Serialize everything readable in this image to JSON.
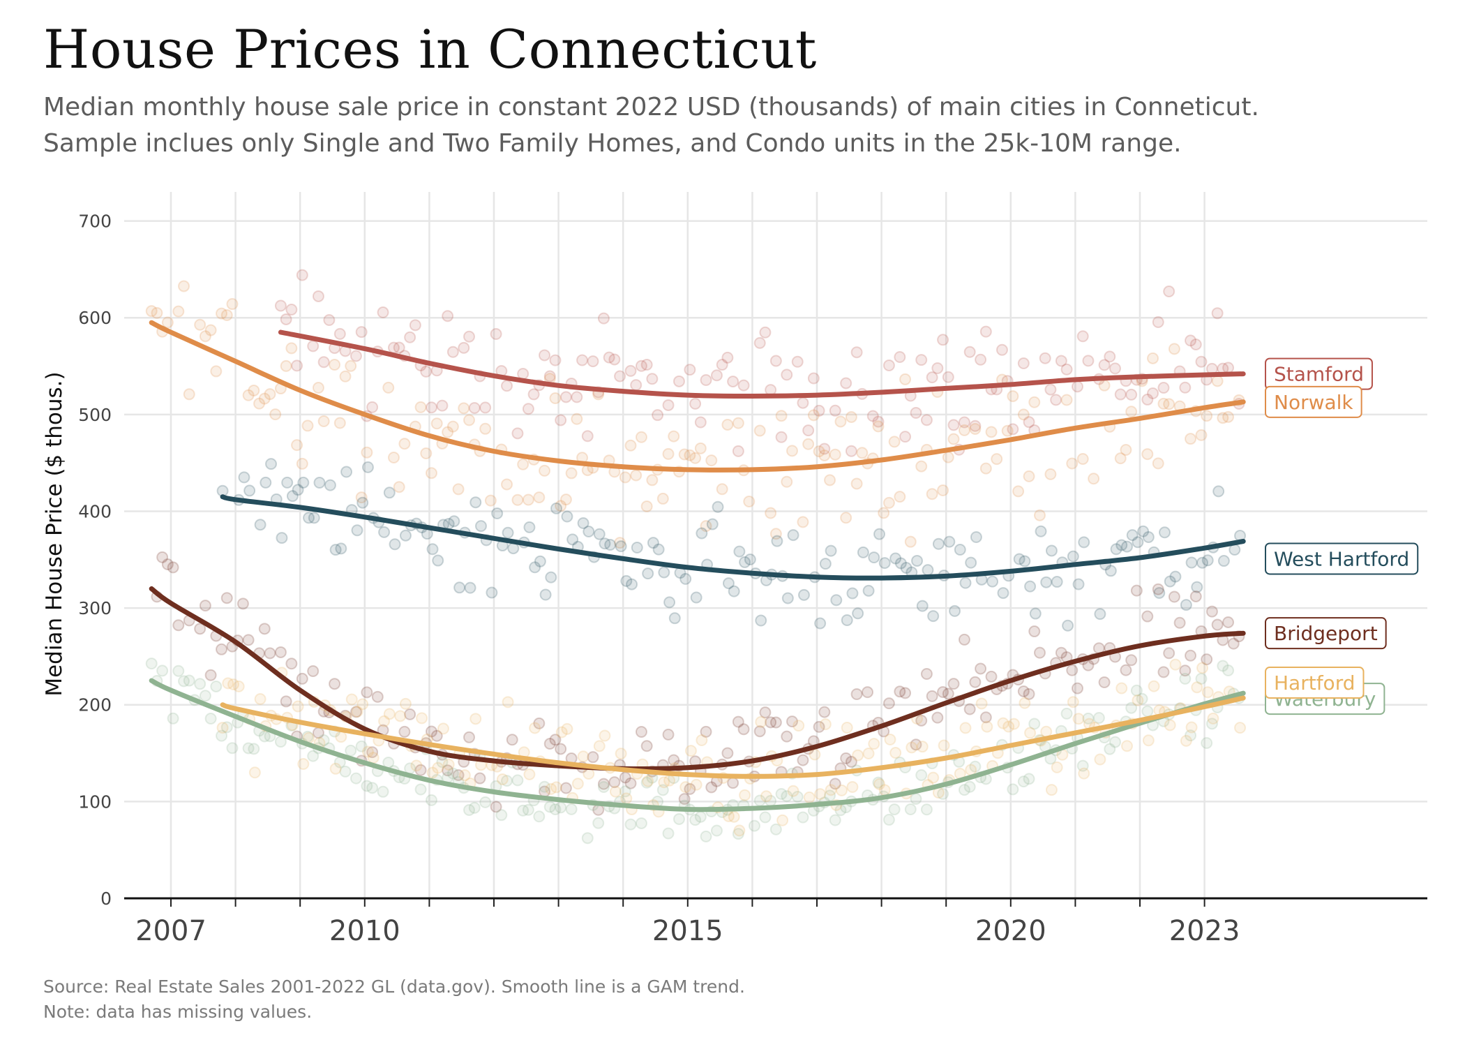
{
  "title": "House Prices in Connecticut",
  "subtitle_lines": [
    "Median monthly house sale price in constant 2022 USD (thousands) of main cities in Conneticut.",
    "Sample inclues only Single and Two Family Homes, and Condo units in the 25k-10M range."
  ],
  "footer_lines": [
    "Source: Real Estate Sales 2001-2022 GL (data.gov). Smooth line is a GAM trend.",
    "Note: data has missing values."
  ],
  "chart_data": {
    "type": "line",
    "title": "House Prices in Connecticut",
    "ylabel": "Median House Price ($ thous.)",
    "xlabel": "",
    "xlim": [
      2006.6,
      2026.8
    ],
    "ylim": [
      0,
      730
    ],
    "x_tick_labels": [
      2007,
      2010,
      2015,
      2020,
      2023
    ],
    "x_minor_ticks": [
      2007,
      2008,
      2009,
      2010,
      2011,
      2012,
      2013,
      2014,
      2015,
      2016,
      2017,
      2018,
      2019,
      2020,
      2021,
      2022,
      2023
    ],
    "y_ticks": [
      0,
      100,
      200,
      300,
      400,
      500,
      600,
      700
    ],
    "grid": true,
    "legend": "direct labels at line ends (right)",
    "scatter_note": "faint monthly median points around each trend line",
    "series": [
      {
        "name": "Stamford",
        "color": "#b5534b",
        "trend": [
          [
            2008.7,
            585
          ],
          [
            2010,
            568
          ],
          [
            2011,
            553
          ],
          [
            2012,
            540
          ],
          [
            2013,
            530
          ],
          [
            2014,
            524
          ],
          [
            2015,
            520
          ],
          [
            2016,
            519
          ],
          [
            2017,
            520
          ],
          [
            2018,
            523
          ],
          [
            2019,
            527
          ],
          [
            2020,
            531
          ],
          [
            2021,
            536
          ],
          [
            2022,
            539
          ],
          [
            2023,
            541
          ],
          [
            2023.6,
            542
          ]
        ],
        "scatter_spread": 55
      },
      {
        "name": "Norwalk",
        "color": "#df8c49",
        "trend": [
          [
            2006.7,
            595
          ],
          [
            2007,
            585
          ],
          [
            2008,
            555
          ],
          [
            2009,
            525
          ],
          [
            2010,
            500
          ],
          [
            2011,
            478
          ],
          [
            2012,
            462
          ],
          [
            2013,
            452
          ],
          [
            2014,
            446
          ],
          [
            2015,
            443
          ],
          [
            2016,
            443
          ],
          [
            2017,
            446
          ],
          [
            2018,
            453
          ],
          [
            2019,
            463
          ],
          [
            2020,
            474
          ],
          [
            2021,
            486
          ],
          [
            2022,
            496
          ],
          [
            2023,
            507
          ],
          [
            2023.6,
            513
          ]
        ],
        "scatter_spread": 60
      },
      {
        "name": "West Hartford",
        "color": "#244d5c",
        "trend": [
          [
            2007.8,
            415
          ],
          [
            2008,
            412
          ],
          [
            2009,
            404
          ],
          [
            2010,
            394
          ],
          [
            2011,
            383
          ],
          [
            2012,
            372
          ],
          [
            2013,
            361
          ],
          [
            2014,
            351
          ],
          [
            2015,
            342
          ],
          [
            2016,
            336
          ],
          [
            2017,
            332
          ],
          [
            2018,
            331
          ],
          [
            2019,
            333
          ],
          [
            2020,
            338
          ],
          [
            2021,
            345
          ],
          [
            2022,
            352
          ],
          [
            2023,
            362
          ],
          [
            2023.6,
            369
          ]
        ],
        "scatter_spread": 45
      },
      {
        "name": "Bridgeport",
        "color": "#6e2e1f",
        "trend": [
          [
            2006.7,
            320
          ],
          [
            2007,
            305
          ],
          [
            2008,
            265
          ],
          [
            2009,
            215
          ],
          [
            2010,
            175
          ],
          [
            2011,
            152
          ],
          [
            2012,
            142
          ],
          [
            2013,
            137
          ],
          [
            2014,
            134
          ],
          [
            2015,
            135
          ],
          [
            2016,
            142
          ],
          [
            2017,
            157
          ],
          [
            2018,
            178
          ],
          [
            2019,
            202
          ],
          [
            2020,
            225
          ],
          [
            2021,
            245
          ],
          [
            2022,
            261
          ],
          [
            2023,
            271
          ],
          [
            2023.6,
            274
          ]
        ],
        "scatter_spread": 40
      },
      {
        "name": "Waterbury",
        "color": "#8fb391",
        "trend": [
          [
            2006.7,
            225
          ],
          [
            2007,
            215
          ],
          [
            2008,
            188
          ],
          [
            2009,
            162
          ],
          [
            2010,
            140
          ],
          [
            2011,
            122
          ],
          [
            2012,
            110
          ],
          [
            2013,
            102
          ],
          [
            2014,
            96
          ],
          [
            2015,
            92
          ],
          [
            2016,
            93
          ],
          [
            2017,
            97
          ],
          [
            2018,
            104
          ],
          [
            2019,
            118
          ],
          [
            2020,
            138
          ],
          [
            2021,
            160
          ],
          [
            2022,
            181
          ],
          [
            2023,
            201
          ],
          [
            2023.6,
            212
          ]
        ],
        "scatter_spread": 30
      },
      {
        "name": "Hartford",
        "color": "#e8b25f",
        "trend": [
          [
            2007.8,
            200
          ],
          [
            2008,
            196
          ],
          [
            2009,
            182
          ],
          [
            2010,
            170
          ],
          [
            2011,
            159
          ],
          [
            2012,
            149
          ],
          [
            2013,
            140
          ],
          [
            2014,
            133
          ],
          [
            2015,
            128
          ],
          [
            2016,
            126
          ],
          [
            2017,
            128
          ],
          [
            2018,
            135
          ],
          [
            2019,
            145
          ],
          [
            2020,
            158
          ],
          [
            2021,
            171
          ],
          [
            2022,
            184
          ],
          [
            2023,
            198
          ],
          [
            2023.6,
            207
          ]
        ],
        "scatter_spread": 40
      }
    ]
  }
}
